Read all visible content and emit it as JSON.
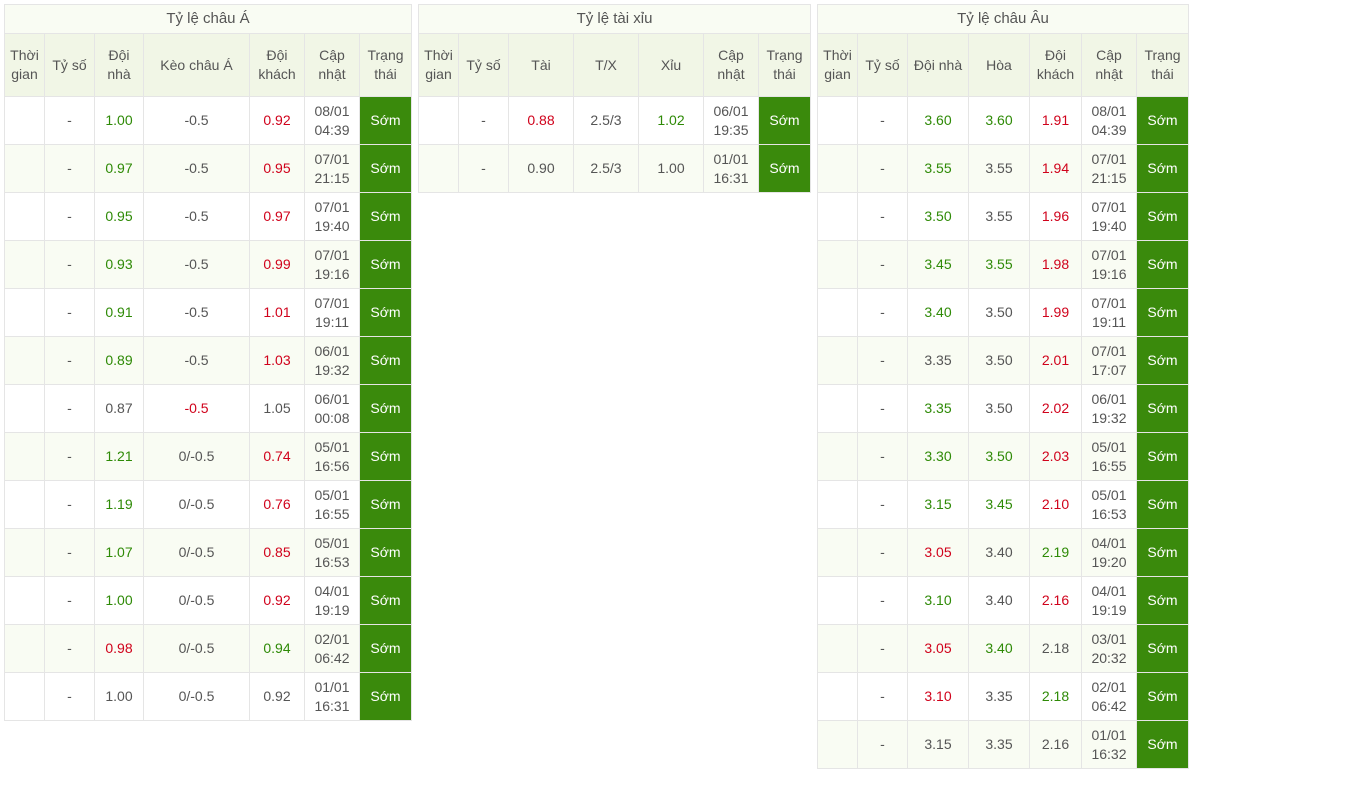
{
  "status_label": "Sớm",
  "colors": {
    "green": "#2e8a06",
    "red": "#d0021b",
    "neutral": "#555555",
    "status_bg": "#3a8a0c",
    "status_fg": "#ffffff",
    "header_bg": "#f1f6e6",
    "title_bg": "#f9fcf3",
    "stripe_bg": "#f9fcf3",
    "border": "#e5e5e5"
  },
  "asia": {
    "title": "Tỷ lệ châu Á",
    "columns": [
      "Thời gian",
      "Tỷ số",
      "Đội nhà",
      "Kèo châu Á",
      "Đội khách",
      "Cập nhật",
      "Trạng thái"
    ],
    "rows": [
      {
        "time": "",
        "score": "-",
        "home": {
          "v": "1.00",
          "c": "green"
        },
        "line": {
          "v": "-0.5",
          "c": "neutral"
        },
        "away": {
          "v": "0.92",
          "c": "red"
        },
        "upd": "08/01 04:39"
      },
      {
        "time": "",
        "score": "-",
        "home": {
          "v": "0.97",
          "c": "green"
        },
        "line": {
          "v": "-0.5",
          "c": "neutral"
        },
        "away": {
          "v": "0.95",
          "c": "red"
        },
        "upd": "07/01 21:15"
      },
      {
        "time": "",
        "score": "-",
        "home": {
          "v": "0.95",
          "c": "green"
        },
        "line": {
          "v": "-0.5",
          "c": "neutral"
        },
        "away": {
          "v": "0.97",
          "c": "red"
        },
        "upd": "07/01 19:40"
      },
      {
        "time": "",
        "score": "-",
        "home": {
          "v": "0.93",
          "c": "green"
        },
        "line": {
          "v": "-0.5",
          "c": "neutral"
        },
        "away": {
          "v": "0.99",
          "c": "red"
        },
        "upd": "07/01 19:16"
      },
      {
        "time": "",
        "score": "-",
        "home": {
          "v": "0.91",
          "c": "green"
        },
        "line": {
          "v": "-0.5",
          "c": "neutral"
        },
        "away": {
          "v": "1.01",
          "c": "red"
        },
        "upd": "07/01 19:11"
      },
      {
        "time": "",
        "score": "-",
        "home": {
          "v": "0.89",
          "c": "green"
        },
        "line": {
          "v": "-0.5",
          "c": "neutral"
        },
        "away": {
          "v": "1.03",
          "c": "red"
        },
        "upd": "06/01 19:32"
      },
      {
        "time": "",
        "score": "-",
        "home": {
          "v": "0.87",
          "c": "neutral"
        },
        "line": {
          "v": "-0.5",
          "c": "red"
        },
        "away": {
          "v": "1.05",
          "c": "neutral"
        },
        "upd": "06/01 00:08"
      },
      {
        "time": "",
        "score": "-",
        "home": {
          "v": "1.21",
          "c": "green"
        },
        "line": {
          "v": "0/-0.5",
          "c": "neutral"
        },
        "away": {
          "v": "0.74",
          "c": "red"
        },
        "upd": "05/01 16:56"
      },
      {
        "time": "",
        "score": "-",
        "home": {
          "v": "1.19",
          "c": "green"
        },
        "line": {
          "v": "0/-0.5",
          "c": "neutral"
        },
        "away": {
          "v": "0.76",
          "c": "red"
        },
        "upd": "05/01 16:55"
      },
      {
        "time": "",
        "score": "-",
        "home": {
          "v": "1.07",
          "c": "green"
        },
        "line": {
          "v": "0/-0.5",
          "c": "neutral"
        },
        "away": {
          "v": "0.85",
          "c": "red"
        },
        "upd": "05/01 16:53"
      },
      {
        "time": "",
        "score": "-",
        "home": {
          "v": "1.00",
          "c": "green"
        },
        "line": {
          "v": "0/-0.5",
          "c": "neutral"
        },
        "away": {
          "v": "0.92",
          "c": "red"
        },
        "upd": "04/01 19:19"
      },
      {
        "time": "",
        "score": "-",
        "home": {
          "v": "0.98",
          "c": "red"
        },
        "line": {
          "v": "0/-0.5",
          "c": "neutral"
        },
        "away": {
          "v": "0.94",
          "c": "green"
        },
        "upd": "02/01 06:42"
      },
      {
        "time": "",
        "score": "-",
        "home": {
          "v": "1.00",
          "c": "neutral"
        },
        "line": {
          "v": "0/-0.5",
          "c": "neutral"
        },
        "away": {
          "v": "0.92",
          "c": "neutral"
        },
        "upd": "01/01 16:31"
      }
    ]
  },
  "ou": {
    "title": "Tỷ lệ tài xỉu",
    "columns": [
      "Thời gian",
      "Tỷ số",
      "Tài",
      "T/X",
      "Xỉu",
      "Cập nhật",
      "Trạng thái"
    ],
    "rows": [
      {
        "time": "",
        "score": "-",
        "tai": {
          "v": "0.88",
          "c": "red"
        },
        "tx": {
          "v": "2.5/3",
          "c": "neutral"
        },
        "xiu": {
          "v": "1.02",
          "c": "green"
        },
        "upd": "06/01 19:35"
      },
      {
        "time": "",
        "score": "-",
        "tai": {
          "v": "0.90",
          "c": "neutral"
        },
        "tx": {
          "v": "2.5/3",
          "c": "neutral"
        },
        "xiu": {
          "v": "1.00",
          "c": "neutral"
        },
        "upd": "01/01 16:31"
      }
    ]
  },
  "eu": {
    "title": "Tỷ lệ châu Âu",
    "columns": [
      "Thời gian",
      "Tỷ số",
      "Đội nhà",
      "Hòa",
      "Đội khách",
      "Cập nhật",
      "Trạng thái"
    ],
    "rows": [
      {
        "time": "",
        "score": "-",
        "w1": {
          "v": "3.60",
          "c": "green"
        },
        "dr": {
          "v": "3.60",
          "c": "green"
        },
        "w2": {
          "v": "1.91",
          "c": "red"
        },
        "upd": "08/01 04:39"
      },
      {
        "time": "",
        "score": "-",
        "w1": {
          "v": "3.55",
          "c": "green"
        },
        "dr": {
          "v": "3.55",
          "c": "neutral"
        },
        "w2": {
          "v": "1.94",
          "c": "red"
        },
        "upd": "07/01 21:15"
      },
      {
        "time": "",
        "score": "-",
        "w1": {
          "v": "3.50",
          "c": "green"
        },
        "dr": {
          "v": "3.55",
          "c": "neutral"
        },
        "w2": {
          "v": "1.96",
          "c": "red"
        },
        "upd": "07/01 19:40"
      },
      {
        "time": "",
        "score": "-",
        "w1": {
          "v": "3.45",
          "c": "green"
        },
        "dr": {
          "v": "3.55",
          "c": "green"
        },
        "w2": {
          "v": "1.98",
          "c": "red"
        },
        "upd": "07/01 19:16"
      },
      {
        "time": "",
        "score": "-",
        "w1": {
          "v": "3.40",
          "c": "green"
        },
        "dr": {
          "v": "3.50",
          "c": "neutral"
        },
        "w2": {
          "v": "1.99",
          "c": "red"
        },
        "upd": "07/01 19:11"
      },
      {
        "time": "",
        "score": "-",
        "w1": {
          "v": "3.35",
          "c": "neutral"
        },
        "dr": {
          "v": "3.50",
          "c": "neutral"
        },
        "w2": {
          "v": "2.01",
          "c": "red"
        },
        "upd": "07/01 17:07"
      },
      {
        "time": "",
        "score": "-",
        "w1": {
          "v": "3.35",
          "c": "green"
        },
        "dr": {
          "v": "3.50",
          "c": "neutral"
        },
        "w2": {
          "v": "2.02",
          "c": "red"
        },
        "upd": "06/01 19:32"
      },
      {
        "time": "",
        "score": "-",
        "w1": {
          "v": "3.30",
          "c": "green"
        },
        "dr": {
          "v": "3.50",
          "c": "green"
        },
        "w2": {
          "v": "2.03",
          "c": "red"
        },
        "upd": "05/01 16:55"
      },
      {
        "time": "",
        "score": "-",
        "w1": {
          "v": "3.15",
          "c": "green"
        },
        "dr": {
          "v": "3.45",
          "c": "green"
        },
        "w2": {
          "v": "2.10",
          "c": "red"
        },
        "upd": "05/01 16:53"
      },
      {
        "time": "",
        "score": "-",
        "w1": {
          "v": "3.05",
          "c": "red"
        },
        "dr": {
          "v": "3.40",
          "c": "neutral"
        },
        "w2": {
          "v": "2.19",
          "c": "green"
        },
        "upd": "04/01 19:20"
      },
      {
        "time": "",
        "score": "-",
        "w1": {
          "v": "3.10",
          "c": "green"
        },
        "dr": {
          "v": "3.40",
          "c": "neutral"
        },
        "w2": {
          "v": "2.16",
          "c": "red"
        },
        "upd": "04/01 19:19"
      },
      {
        "time": "",
        "score": "-",
        "w1": {
          "v": "3.05",
          "c": "red"
        },
        "dr": {
          "v": "3.40",
          "c": "green"
        },
        "w2": {
          "v": "2.18",
          "c": "neutral"
        },
        "upd": "03/01 20:32"
      },
      {
        "time": "",
        "score": "-",
        "w1": {
          "v": "3.10",
          "c": "red"
        },
        "dr": {
          "v": "3.35",
          "c": "neutral"
        },
        "w2": {
          "v": "2.18",
          "c": "green"
        },
        "upd": "02/01 06:42"
      },
      {
        "time": "",
        "score": "-",
        "w1": {
          "v": "3.15",
          "c": "neutral"
        },
        "dr": {
          "v": "3.35",
          "c": "neutral"
        },
        "w2": {
          "v": "2.16",
          "c": "neutral"
        },
        "upd": "01/01 16:32"
      }
    ]
  }
}
